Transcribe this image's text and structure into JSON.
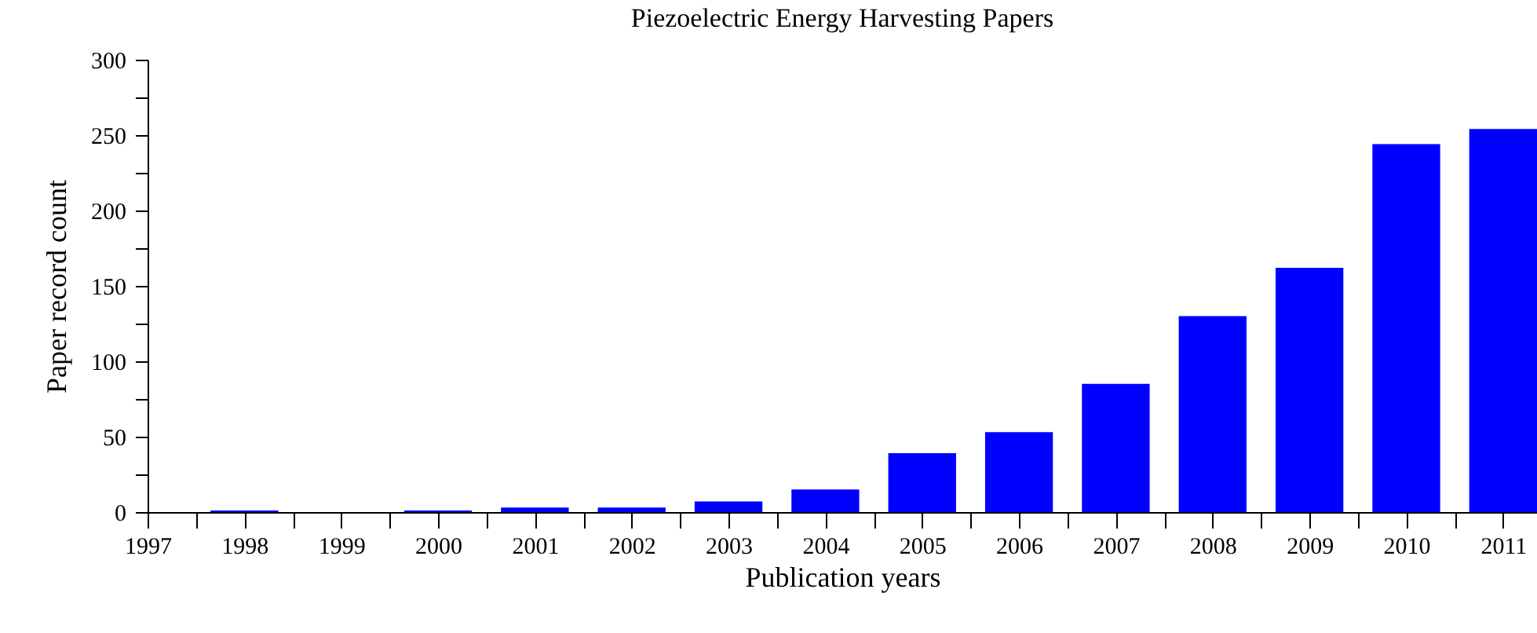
{
  "chart_data": {
    "type": "bar",
    "title": "Piezoelectric Energy Harvesting Papers",
    "xlabel": "Publication years",
    "ylabel": "Paper record count",
    "x": [
      1997,
      1998,
      1999,
      2000,
      2001,
      2002,
      2003,
      2004,
      2005,
      2006,
      2007,
      2008,
      2009,
      2010,
      2011
    ],
    "values": [
      0,
      1,
      0,
      1,
      3,
      3,
      7,
      15,
      39,
      53,
      85,
      130,
      162,
      244,
      254
    ],
    "color": "#0000ff",
    "xlim": [
      1997,
      2011.35
    ],
    "xticks": [
      1997,
      {
        "value": 1997.5,
        "label": null
      },
      1998,
      {
        "value": 1998.5,
        "label": null
      },
      1999,
      {
        "value": 1999.5,
        "label": null
      },
      2000,
      {
        "value": 2000.5,
        "label": null
      },
      2001,
      {
        "value": 2001.5,
        "label": null
      },
      2002,
      {
        "value": 2002.5,
        "label": null
      },
      2003,
      {
        "value": 2003.5,
        "label": null
      },
      2004,
      {
        "value": 2004.5,
        "label": null
      },
      2005,
      {
        "value": 2005.5,
        "label": null
      },
      2006,
      {
        "value": 2006.5,
        "label": null
      },
      2007,
      {
        "value": 2007.5,
        "label": null
      },
      2008,
      {
        "value": 2008.5,
        "label": null
      },
      2009,
      {
        "value": 2009.5,
        "label": null
      },
      2010,
      {
        "value": 2010.5,
        "label": null
      },
      2011
    ],
    "ylim": [
      0,
      300
    ],
    "yticks": [
      0,
      {
        "value": 25,
        "label": null
      },
      50,
      {
        "value": 75,
        "label": null
      },
      100,
      {
        "value": 125,
        "label": null
      },
      150,
      {
        "value": 175,
        "label": null
      },
      200,
      {
        "value": 225,
        "label": null
      },
      250,
      {
        "value": 275,
        "label": null
      },
      300
    ],
    "grid": false
  }
}
